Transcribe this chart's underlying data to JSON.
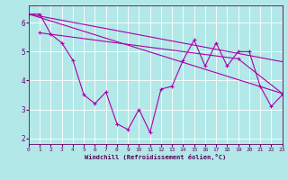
{
  "xlabel": "Windchill (Refroidissement éolien,°C)",
  "background_color": "#b2e8e8",
  "line_color": "#aa00aa",
  "grid_color": "#ffffff",
  "xlim": [
    0,
    23
  ],
  "ylim": [
    1.8,
    6.6
  ],
  "xticks": [
    0,
    1,
    2,
    3,
    4,
    5,
    6,
    7,
    8,
    9,
    10,
    11,
    12,
    13,
    14,
    15,
    16,
    17,
    18,
    19,
    20,
    21,
    22,
    23
  ],
  "yticks": [
    2,
    3,
    4,
    5,
    6
  ],
  "line1": {
    "x": [
      0,
      1,
      2,
      3,
      4,
      5,
      6,
      7,
      8,
      9,
      10,
      11,
      12,
      13,
      14,
      15,
      16,
      17,
      18,
      19,
      20,
      21,
      22,
      23
    ],
    "y": [
      6.3,
      6.3,
      5.6,
      5.3,
      4.7,
      3.5,
      3.2,
      3.6,
      2.5,
      2.3,
      3.0,
      2.2,
      3.7,
      3.8,
      4.7,
      5.4,
      4.5,
      5.3,
      4.5,
      5.0,
      5.0,
      3.8,
      3.1,
      3.5
    ]
  },
  "line2_x": [
    0,
    23
  ],
  "line2_y": [
    6.3,
    3.55
  ],
  "line3_x": [
    0,
    23
  ],
  "line3_y": [
    6.3,
    4.65
  ],
  "line4_x": [
    1,
    19,
    23
  ],
  "line4_y": [
    5.65,
    4.75,
    3.55
  ]
}
